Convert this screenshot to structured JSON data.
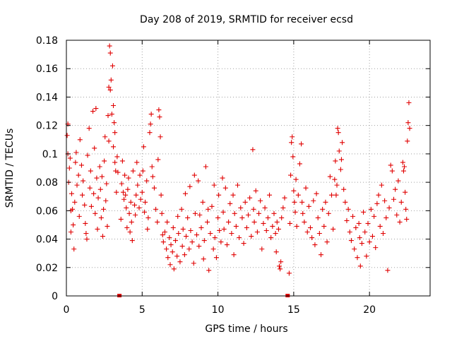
{
  "chart_data": {
    "type": "scatter",
    "title": "Day 208 of 2019, SRMTID for receiver ecsd",
    "xlabel": "GPS time / hours",
    "ylabel": "SRMTID / TECUs",
    "xlim": [
      0,
      24
    ],
    "ylim": [
      0,
      0.18
    ],
    "xticks": [
      0,
      5,
      10,
      15,
      20
    ],
    "xtick_labels": [
      "0",
      "5",
      "10",
      "15",
      "20"
    ],
    "yticks": [
      0,
      0.02,
      0.04,
      0.06,
      0.08,
      0.1,
      0.12,
      0.14,
      0.16,
      0.18
    ],
    "ytick_labels": [
      "0",
      "0.02",
      "0.04",
      "0.06",
      "0.08",
      "0.1",
      "0.12",
      "0.14",
      "0.16",
      "0.18"
    ],
    "grid": true,
    "marker": "+",
    "color": "#e00000",
    "series": [
      {
        "name": "SRMTID",
        "data_gaps_hours": [
          3.5,
          14.6
        ],
        "points": [
          [
            0.05,
            0.113
          ],
          [
            0.1,
            0.121
          ],
          [
            0.1,
            0.1
          ],
          [
            0.15,
            0.08
          ],
          [
            0.2,
            0.09
          ],
          [
            0.25,
            0.097
          ],
          [
            0.3,
            0.06
          ],
          [
            0.3,
            0.045
          ],
          [
            0.35,
            0.072
          ],
          [
            0.4,
            0.061
          ],
          [
            0.45,
            0.05
          ],
          [
            0.5,
            0.033
          ],
          [
            0.55,
            0.066
          ],
          [
            0.6,
            0.094
          ],
          [
            0.65,
            0.101
          ],
          [
            0.7,
            0.078
          ],
          [
            0.8,
            0.085
          ],
          [
            0.85,
            0.056
          ],
          [
            0.9,
            0.11
          ],
          [
            1.0,
            0.092
          ],
          [
            1.05,
            0.071
          ],
          [
            1.1,
            0.081
          ],
          [
            1.2,
            0.064
          ],
          [
            1.25,
            0.051
          ],
          [
            1.3,
            0.044
          ],
          [
            1.35,
            0.04
          ],
          [
            1.4,
            0.099
          ],
          [
            1.5,
            0.118
          ],
          [
            1.55,
            0.076
          ],
          [
            1.6,
            0.088
          ],
          [
            1.65,
            0.063
          ],
          [
            1.75,
            0.13
          ],
          [
            1.8,
            0.072
          ],
          [
            1.85,
            0.104
          ],
          [
            1.9,
            0.058
          ],
          [
            1.95,
            0.132
          ],
          [
            2.0,
            0.083
          ],
          [
            2.05,
            0.047
          ],
          [
            2.1,
            0.069
          ],
          [
            2.2,
            0.091
          ],
          [
            2.25,
            0.075
          ],
          [
            2.3,
            0.055
          ],
          [
            2.35,
            0.084
          ],
          [
            2.4,
            0.042
          ],
          [
            2.45,
            0.061
          ],
          [
            2.5,
            0.095
          ],
          [
            2.55,
            0.112
          ],
          [
            2.6,
            0.067
          ],
          [
            2.65,
            0.079
          ],
          [
            2.7,
            0.049
          ],
          [
            2.75,
            0.127
          ],
          [
            2.8,
            0.109
          ],
          [
            2.8,
            0.147
          ],
          [
            2.85,
            0.176
          ],
          [
            2.9,
            0.171
          ],
          [
            2.9,
            0.145
          ],
          [
            2.95,
            0.152
          ],
          [
            3.0,
            0.128
          ],
          [
            3.05,
            0.162
          ],
          [
            3.1,
            0.105
          ],
          [
            3.1,
            0.134
          ],
          [
            3.15,
            0.122
          ],
          [
            3.2,
            0.115
          ],
          [
            3.2,
            0.094
          ],
          [
            3.25,
            0.088
          ],
          [
            3.3,
            0.073
          ],
          [
            3.35,
            0.098
          ],
          [
            3.4,
            0.087
          ],
          [
            3.6,
            0.054
          ],
          [
            3.65,
            0.079
          ],
          [
            3.7,
            0.095
          ],
          [
            3.75,
            0.073
          ],
          [
            3.8,
            0.068
          ],
          [
            3.85,
            0.085
          ],
          [
            3.9,
            0.071
          ],
          [
            3.95,
            0.062
          ],
          [
            4.0,
            0.048
          ],
          [
            4.05,
            0.075
          ],
          [
            4.1,
            0.083
          ],
          [
            4.15,
            0.058
          ],
          [
            4.2,
            0.045
          ],
          [
            4.25,
            0.066
          ],
          [
            4.3,
            0.052
          ],
          [
            4.35,
            0.039
          ],
          [
            4.4,
            0.088
          ],
          [
            4.5,
            0.064
          ],
          [
            4.55,
            0.057
          ],
          [
            4.6,
            0.071
          ],
          [
            4.65,
            0.094
          ],
          [
            4.7,
            0.078
          ],
          [
            4.8,
            0.062
          ],
          [
            4.85,
            0.085
          ],
          [
            4.9,
            0.068
          ],
          [
            5.0,
            0.073
          ],
          [
            5.05,
            0.088
          ],
          [
            5.1,
            0.105
          ],
          [
            5.15,
            0.059
          ],
          [
            5.2,
            0.066
          ],
          [
            5.3,
            0.081
          ],
          [
            5.35,
            0.047
          ],
          [
            5.4,
            0.055
          ],
          [
            5.5,
            0.115
          ],
          [
            5.55,
            0.121
          ],
          [
            5.6,
            0.128
          ],
          [
            5.65,
            0.091
          ],
          [
            5.7,
            0.084
          ],
          [
            5.8,
            0.076
          ],
          [
            5.9,
            0.061
          ],
          [
            6.0,
            0.052
          ],
          [
            6.05,
            0.096
          ],
          [
            6.1,
            0.131
          ],
          [
            6.15,
            0.126
          ],
          [
            6.2,
            0.112
          ],
          [
            6.25,
            0.071
          ],
          [
            6.3,
            0.058
          ],
          [
            6.35,
            0.043
          ],
          [
            6.4,
            0.038
          ],
          [
            6.5,
            0.045
          ],
          [
            6.6,
            0.033
          ],
          [
            6.65,
            0.052
          ],
          [
            6.7,
            0.027
          ],
          [
            6.8,
            0.041
          ],
          [
            6.85,
            0.022
          ],
          [
            6.9,
            0.036
          ],
          [
            7.0,
            0.031
          ],
          [
            7.05,
            0.048
          ],
          [
            7.1,
            0.019
          ],
          [
            7.2,
            0.039
          ],
          [
            7.3,
            0.028
          ],
          [
            7.35,
            0.056
          ],
          [
            7.4,
            0.044
          ],
          [
            7.5,
            0.024
          ],
          [
            7.6,
            0.061
          ],
          [
            7.65,
            0.035
          ],
          [
            7.7,
            0.047
          ],
          [
            7.8,
            0.029
          ],
          [
            7.85,
            0.072
          ],
          [
            7.9,
            0.042
          ],
          [
            8.0,
            0.055
          ],
          [
            8.1,
            0.033
          ],
          [
            8.15,
            0.077
          ],
          [
            8.2,
            0.046
          ],
          [
            8.3,
            0.038
          ],
          [
            8.4,
            0.023
          ],
          [
            8.45,
            0.085
          ],
          [
            8.5,
            0.058
          ],
          [
            8.6,
            0.043
          ],
          [
            8.7,
            0.081
          ],
          [
            8.75,
            0.035
          ],
          [
            8.8,
            0.057
          ],
          [
            8.9,
            0.048
          ],
          [
            9.0,
            0.066
          ],
          [
            9.05,
            0.026
          ],
          [
            9.1,
            0.039
          ],
          [
            9.2,
            0.091
          ],
          [
            9.3,
            0.052
          ],
          [
            9.35,
            0.061
          ],
          [
            9.4,
            0.018
          ],
          [
            9.5,
            0.044
          ],
          [
            9.6,
            0.063
          ],
          [
            9.7,
            0.033
          ],
          [
            9.75,
            0.078
          ],
          [
            9.8,
            0.041
          ],
          [
            9.9,
            0.027
          ],
          [
            10.0,
            0.055
          ],
          [
            10.05,
            0.071
          ],
          [
            10.1,
            0.046
          ],
          [
            10.2,
            0.038
          ],
          [
            10.3,
            0.083
          ],
          [
            10.35,
            0.059
          ],
          [
            10.4,
            0.047
          ],
          [
            10.5,
            0.076
          ],
          [
            10.6,
            0.036
          ],
          [
            10.7,
            0.052
          ],
          [
            10.8,
            0.065
          ],
          [
            10.9,
            0.044
          ],
          [
            11.0,
            0.071
          ],
          [
            11.05,
            0.029
          ],
          [
            11.1,
            0.058
          ],
          [
            11.2,
            0.049
          ],
          [
            11.3,
            0.078
          ],
          [
            11.4,
            0.041
          ],
          [
            11.5,
            0.062
          ],
          [
            11.6,
            0.055
          ],
          [
            11.7,
            0.037
          ],
          [
            11.8,
            0.066
          ],
          [
            11.9,
            0.048
          ],
          [
            12.0,
            0.057
          ],
          [
            12.1,
            0.069
          ],
          [
            12.2,
            0.042
          ],
          [
            12.3,
            0.103
          ],
          [
            12.35,
            0.061
          ],
          [
            12.4,
            0.052
          ],
          [
            12.5,
            0.074
          ],
          [
            12.6,
            0.045
          ],
          [
            12.7,
            0.058
          ],
          [
            12.8,
            0.067
          ],
          [
            12.9,
            0.033
          ],
          [
            13.0,
            0.051
          ],
          [
            13.1,
            0.062
          ],
          [
            13.2,
            0.046
          ],
          [
            13.3,
            0.055
          ],
          [
            13.4,
            0.071
          ],
          [
            13.5,
            0.041
          ],
          [
            13.6,
            0.049
          ],
          [
            13.7,
            0.058
          ],
          [
            13.8,
            0.044
          ],
          [
            13.85,
            0.031
          ],
          [
            13.9,
            0.052
          ],
          [
            14.0,
            0.047
          ],
          [
            14.05,
            0.021
          ],
          [
            14.1,
            0.019
          ],
          [
            14.15,
            0.024
          ],
          [
            14.2,
            0.055
          ],
          [
            14.3,
            0.062
          ],
          [
            14.4,
            0.069
          ],
          [
            14.7,
            0.016
          ],
          [
            14.75,
            0.051
          ],
          [
            14.8,
            0.085
          ],
          [
            14.85,
            0.108
          ],
          [
            14.9,
            0.112
          ],
          [
            14.95,
            0.098
          ],
          [
            15.0,
            0.074
          ],
          [
            15.05,
            0.066
          ],
          [
            15.1,
            0.059
          ],
          [
            15.15,
            0.082
          ],
          [
            15.2,
            0.049
          ],
          [
            15.3,
            0.071
          ],
          [
            15.4,
            0.093
          ],
          [
            15.5,
            0.107
          ],
          [
            15.55,
            0.066
          ],
          [
            15.6,
            0.058
          ],
          [
            15.7,
            0.052
          ],
          [
            15.8,
            0.076
          ],
          [
            15.9,
            0.045
          ],
          [
            16.0,
            0.063
          ],
          [
            16.1,
            0.048
          ],
          [
            16.2,
            0.041
          ],
          [
            16.3,
            0.067
          ],
          [
            16.4,
            0.036
          ],
          [
            16.5,
            0.072
          ],
          [
            16.6,
            0.055
          ],
          [
            16.7,
            0.044
          ],
          [
            16.8,
            0.029
          ],
          [
            16.9,
            0.061
          ],
          [
            17.0,
            0.049
          ],
          [
            17.1,
            0.066
          ],
          [
            17.2,
            0.038
          ],
          [
            17.3,
            0.058
          ],
          [
            17.4,
            0.084
          ],
          [
            17.5,
            0.071
          ],
          [
            17.6,
            0.047
          ],
          [
            17.7,
            0.082
          ],
          [
            17.75,
            0.095
          ],
          [
            17.8,
            0.071
          ],
          [
            17.85,
            0.078
          ],
          [
            17.9,
            0.118
          ],
          [
            17.95,
            0.115
          ],
          [
            18.0,
            0.102
          ],
          [
            18.1,
            0.089
          ],
          [
            18.15,
            0.096
          ],
          [
            18.2,
            0.108
          ],
          [
            18.3,
            0.075
          ],
          [
            18.4,
            0.066
          ],
          [
            18.5,
            0.053
          ],
          [
            18.6,
            0.061
          ],
          [
            18.7,
            0.045
          ],
          [
            18.8,
            0.039
          ],
          [
            18.9,
            0.056
          ],
          [
            19.0,
            0.033
          ],
          [
            19.1,
            0.048
          ],
          [
            19.2,
            0.027
          ],
          [
            19.3,
            0.051
          ],
          [
            19.35,
            0.041
          ],
          [
            19.4,
            0.021
          ],
          [
            19.5,
            0.037
          ],
          [
            19.6,
            0.059
          ],
          [
            19.7,
            0.045
          ],
          [
            19.8,
            0.028
          ],
          [
            19.9,
            0.051
          ],
          [
            20.0,
            0.038
          ],
          [
            20.1,
            0.061
          ],
          [
            20.2,
            0.042
          ],
          [
            20.3,
            0.056
          ],
          [
            20.4,
            0.034
          ],
          [
            20.5,
            0.065
          ],
          [
            20.6,
            0.071
          ],
          [
            20.7,
            0.049
          ],
          [
            20.8,
            0.078
          ],
          [
            20.9,
            0.044
          ],
          [
            21.0,
            0.067
          ],
          [
            21.1,
            0.055
          ],
          [
            21.2,
            0.018
          ],
          [
            21.3,
            0.062
          ],
          [
            21.4,
            0.092
          ],
          [
            21.5,
            0.088
          ],
          [
            21.6,
            0.068
          ],
          [
            21.7,
            0.075
          ],
          [
            21.8,
            0.057
          ],
          [
            21.9,
            0.081
          ],
          [
            22.0,
            0.052
          ],
          [
            22.1,
            0.066
          ],
          [
            22.2,
            0.094
          ],
          [
            22.25,
            0.088
          ],
          [
            22.3,
            0.091
          ],
          [
            22.35,
            0.073
          ],
          [
            22.4,
            0.061
          ],
          [
            22.45,
            0.054
          ],
          [
            22.5,
            0.109
          ],
          [
            22.55,
            0.122
          ],
          [
            22.6,
            0.136
          ],
          [
            22.65,
            0.118
          ]
        ]
      }
    ]
  }
}
